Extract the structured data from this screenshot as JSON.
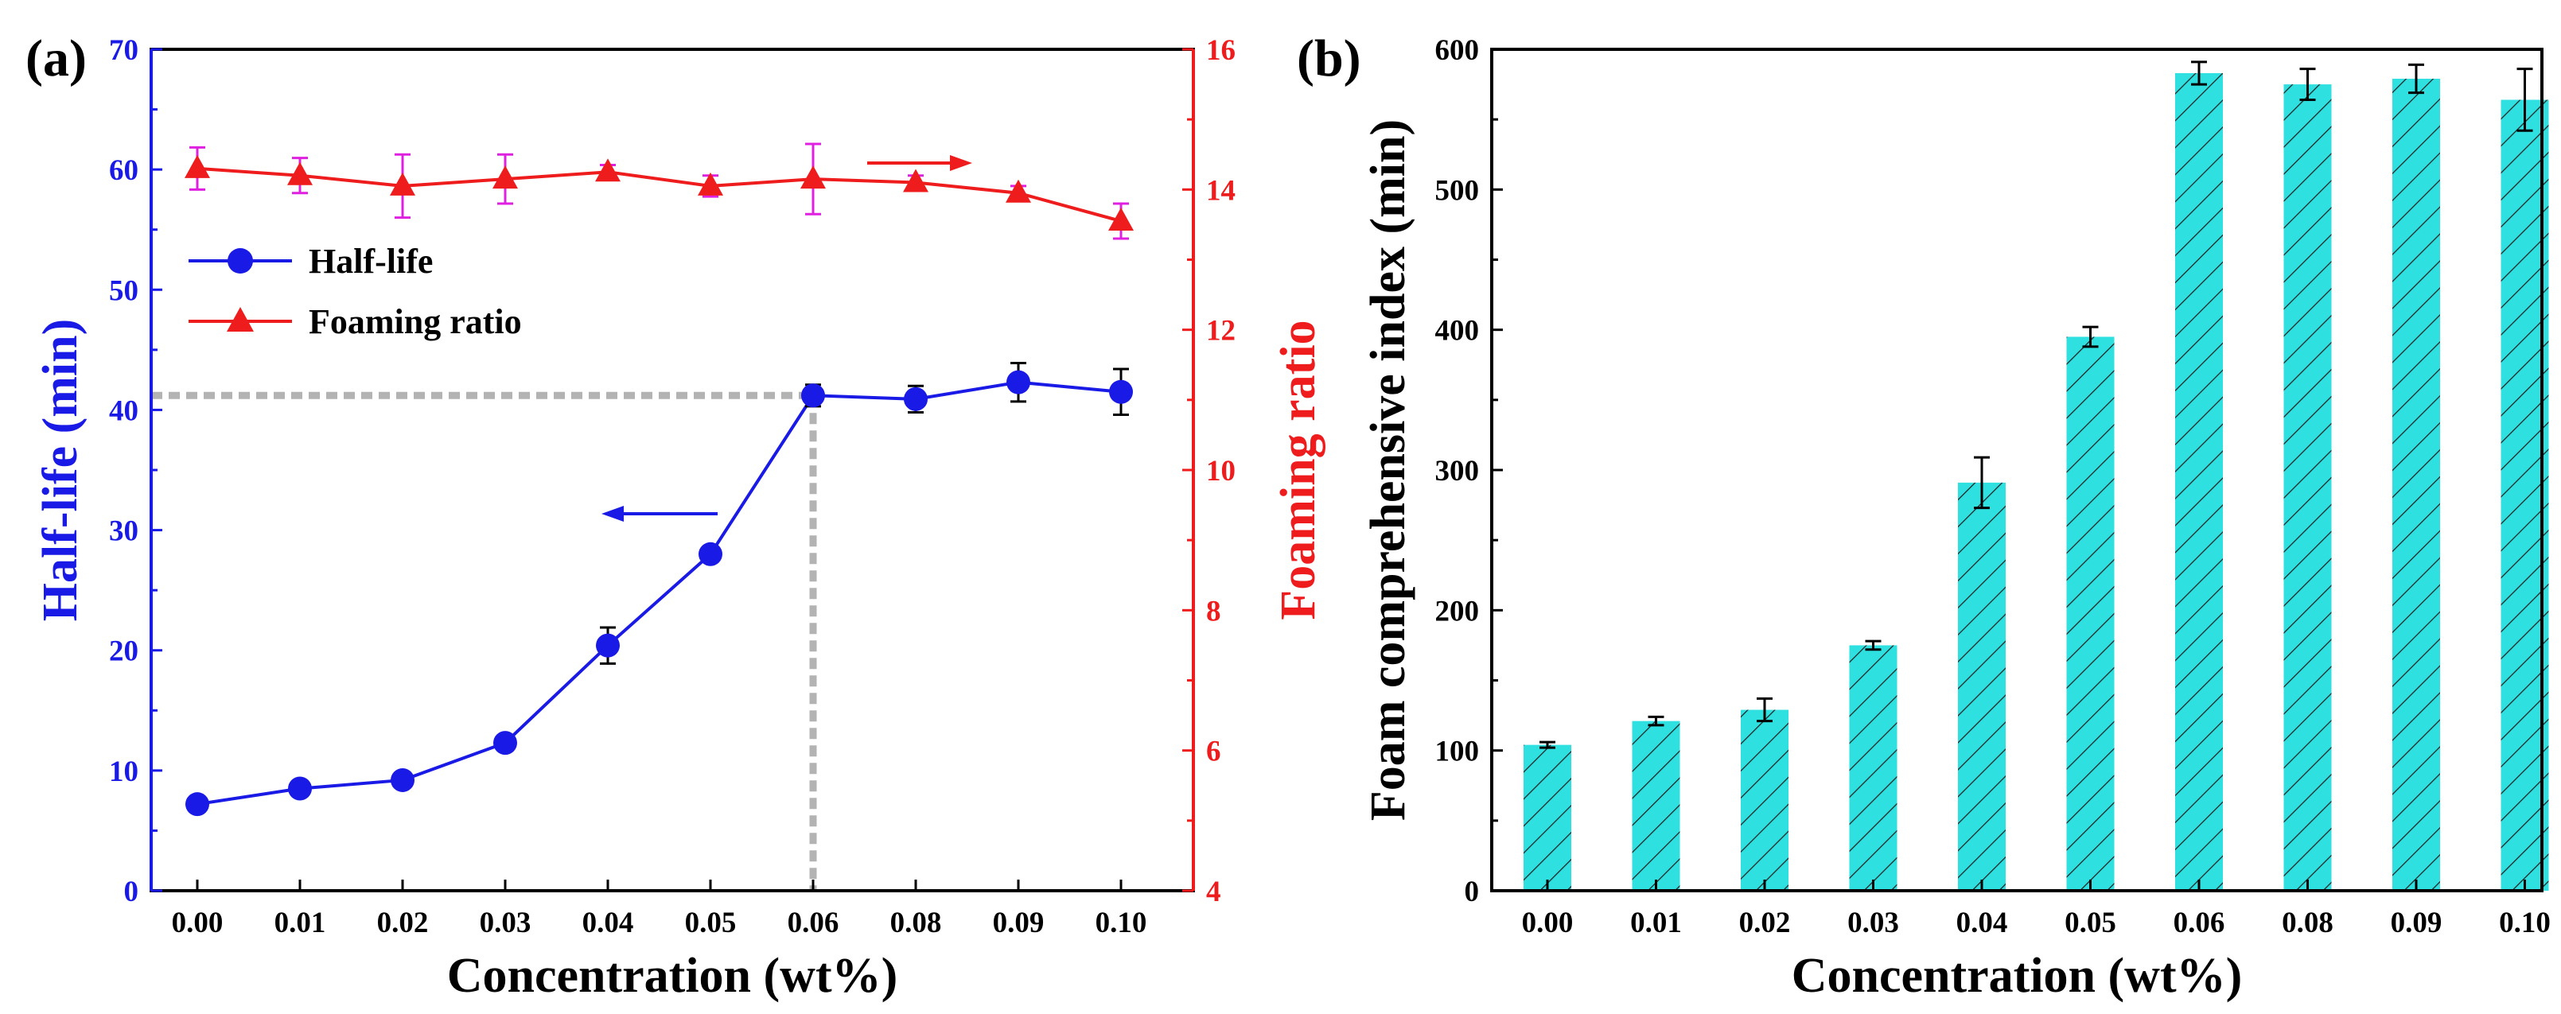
{
  "chart_data": [
    {
      "panel": "(a)",
      "type": "line",
      "categories": [
        "0.00",
        "0.01",
        "0.02",
        "0.03",
        "0.04",
        "0.05",
        "0.06",
        "0.08",
        "0.09",
        "0.10"
      ],
      "xlabel": "Concentration (wt%)",
      "ylabel_left": "Half-life (min)",
      "ylabel_right": "Foaming ratio",
      "ylim_left": [
        0,
        70
      ],
      "ylim_right": [
        4,
        16
      ],
      "yticks_left": [
        "0",
        "10",
        "20",
        "30",
        "40",
        "50",
        "60",
        "70"
      ],
      "yticks_right": [
        "4",
        "6",
        "8",
        "10",
        "12",
        "14",
        "16"
      ],
      "legend": [
        "Half-life",
        "Foaming ratio"
      ],
      "series": [
        {
          "name": "Half-life",
          "axis": "left",
          "color": "#1a1ae6",
          "marker": "circle",
          "values": [
            7.2,
            8.5,
            9.2,
            12.3,
            20.4,
            28.0,
            41.2,
            40.9,
            42.3,
            41.5
          ],
          "errors": [
            0.4,
            0.4,
            0.6,
            0.6,
            1.5,
            0.6,
            0.9,
            1.1,
            1.6,
            1.9
          ]
        },
        {
          "name": "Foaming ratio",
          "axis": "right",
          "color": "#ee1c1c",
          "error_color": "#e020e0",
          "marker": "triangle",
          "values": [
            14.3,
            14.2,
            14.05,
            14.15,
            14.25,
            14.05,
            14.15,
            14.1,
            13.95,
            13.55
          ],
          "errors": [
            0.3,
            0.25,
            0.45,
            0.35,
            0.1,
            0.15,
            0.5,
            0.1,
            0.1,
            0.25
          ]
        }
      ],
      "annotation": {
        "reference_x_category": "0.06",
        "reference_y_value": 41.2,
        "reference_line_color": "#b3b3b3"
      }
    },
    {
      "panel": "(b)",
      "type": "bar",
      "categories": [
        "0.00",
        "0.01",
        "0.02",
        "0.03",
        "0.04",
        "0.05",
        "0.06",
        "0.08",
        "0.09",
        "0.10"
      ],
      "xlabel": "Concentration (wt%)",
      "ylabel": "Foam comprehensive index (min)",
      "ylim": [
        0,
        600
      ],
      "yticks": [
        "0",
        "100",
        "200",
        "300",
        "400",
        "500",
        "600"
      ],
      "bar_color": "#2ee0e0",
      "values": [
        104,
        121,
        129,
        175,
        291,
        395,
        583,
        575,
        579,
        564
      ],
      "errors": [
        2,
        3,
        8,
        3,
        18,
        7,
        8,
        11,
        10,
        22
      ]
    }
  ]
}
